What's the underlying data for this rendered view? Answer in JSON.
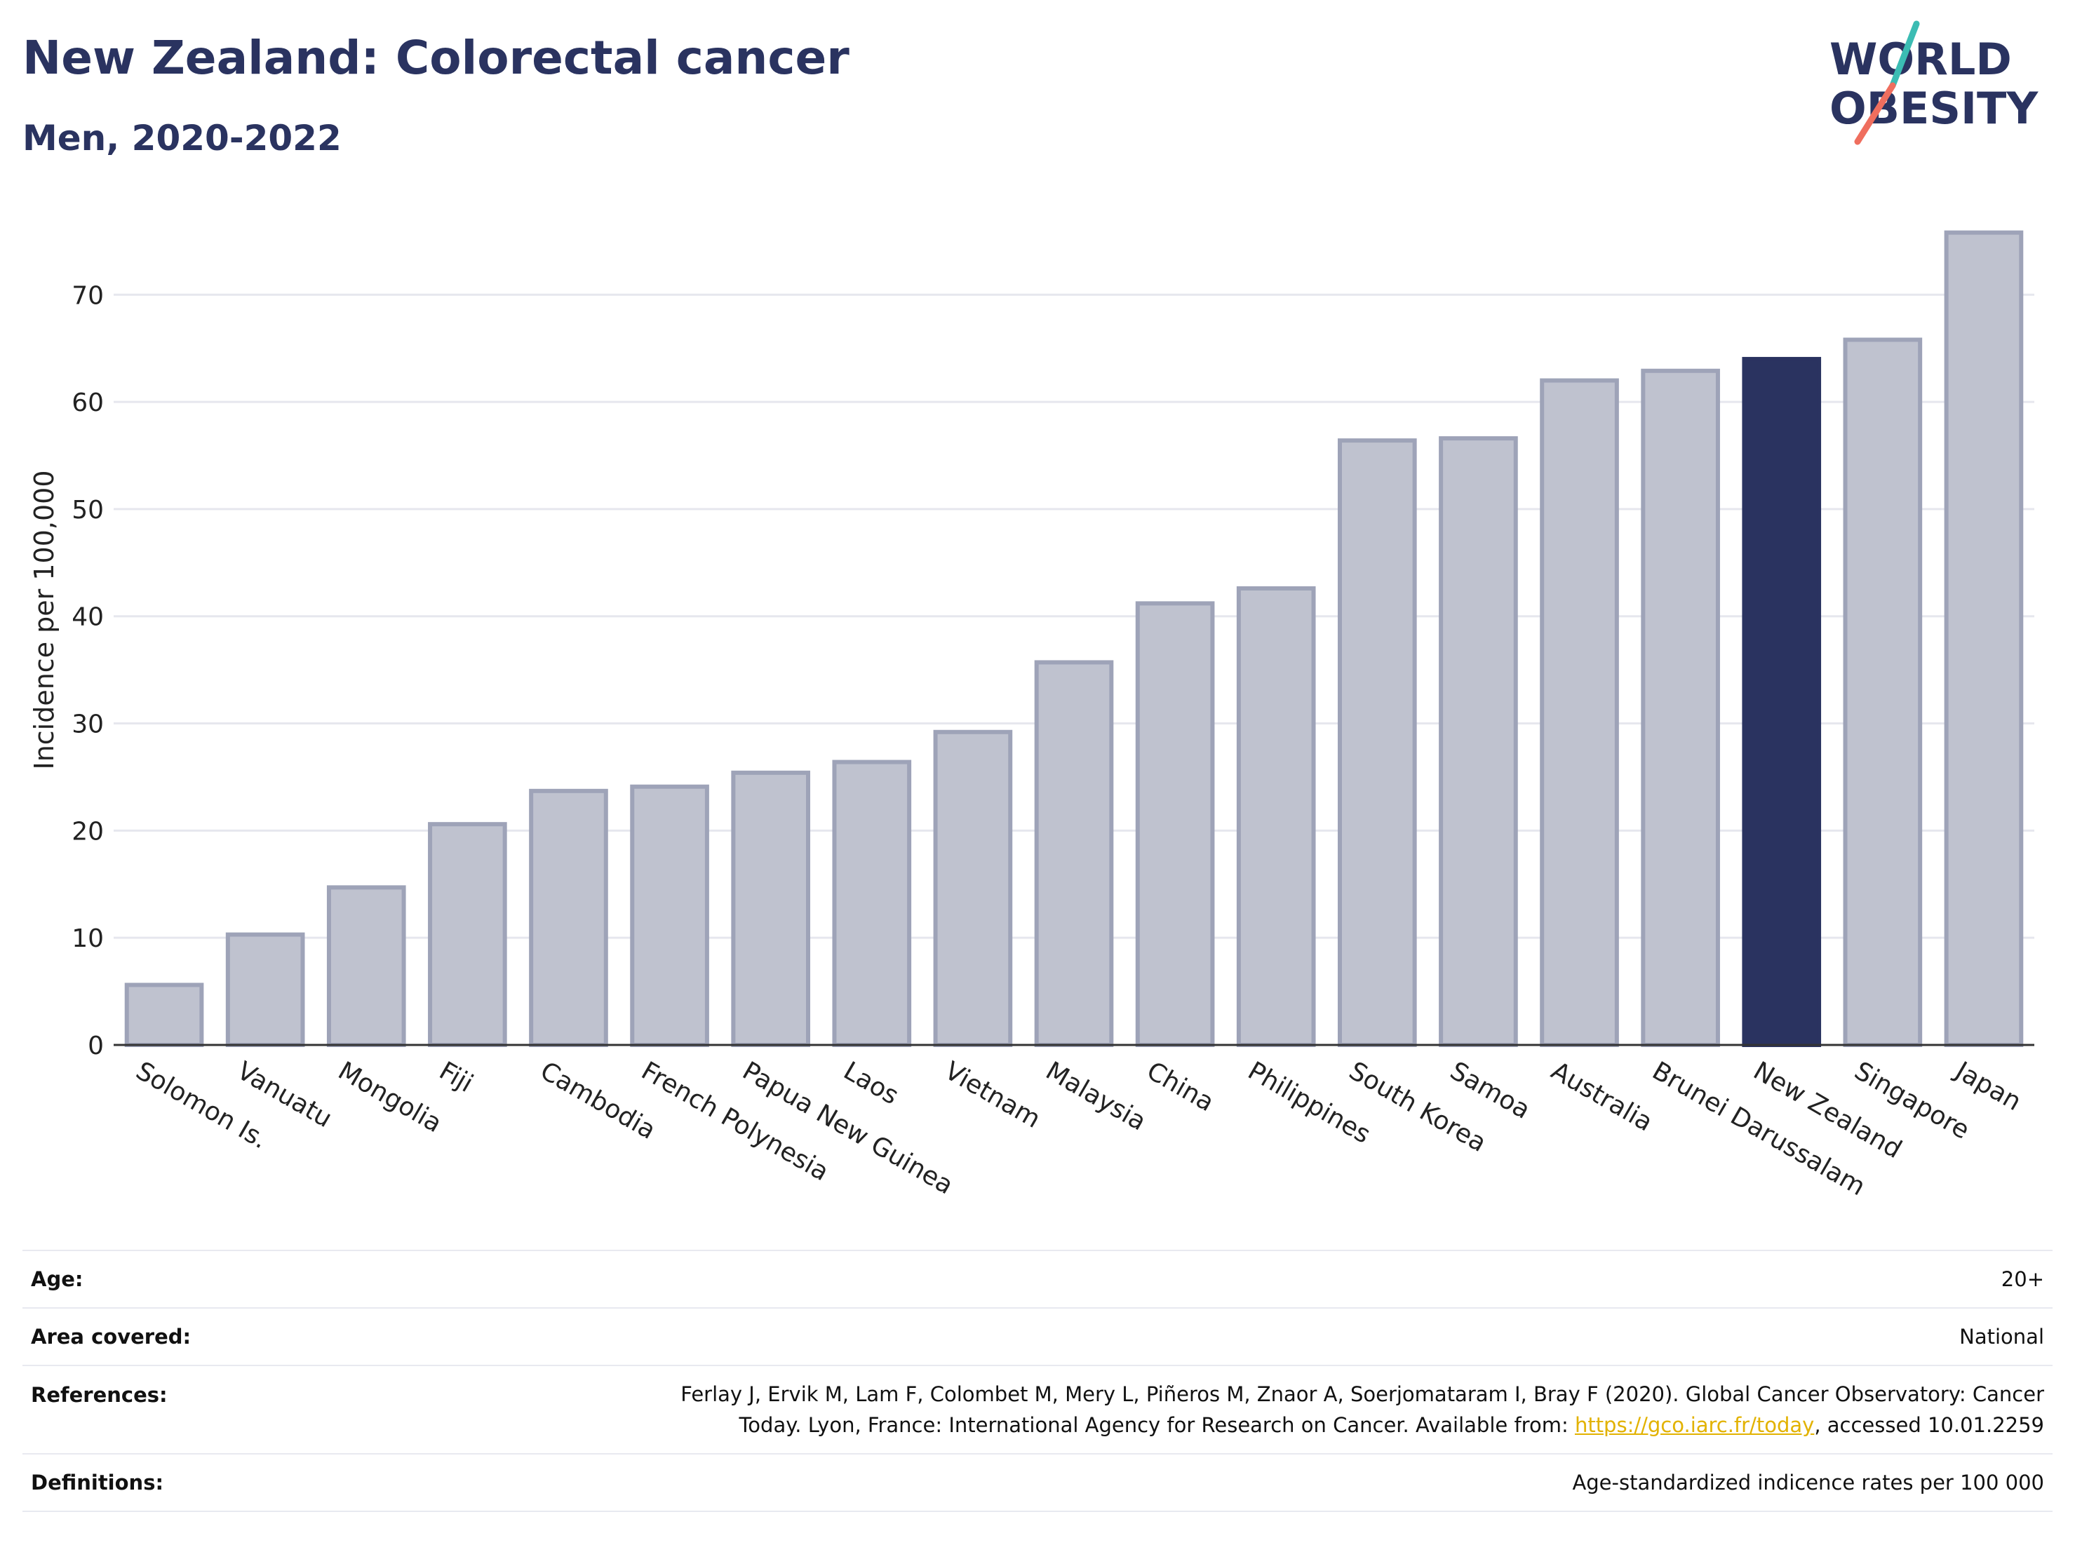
{
  "header": {
    "title": "New Zealand: Colorectal cancer",
    "subtitle": "Men, 2020-2022",
    "logo_line1": "WORLD",
    "logo_line2": "OBESITY"
  },
  "chart_data": {
    "type": "bar",
    "ylabel": "Incidence per 100,000",
    "xlabel": "",
    "ylim": [
      0,
      78
    ],
    "yticks": [
      0,
      10,
      20,
      30,
      40,
      50,
      60,
      70
    ],
    "grid": true,
    "categories": [
      "Solomon Is.",
      "Vanuatu",
      "Mongolia",
      "Fiji",
      "Cambodia",
      "French Polynesia",
      "Papua New Guinea",
      "Laos",
      "Vietnam",
      "Malaysia",
      "China",
      "Philippines",
      "South Korea",
      "Samoa",
      "Australia",
      "Brunei Darussalam",
      "New Zealand",
      "Singapore",
      "Japan"
    ],
    "values": [
      5.6,
      10.3,
      14.7,
      20.6,
      23.7,
      24.1,
      25.4,
      26.4,
      29.2,
      35.7,
      41.2,
      42.6,
      56.4,
      56.6,
      62.0,
      62.9,
      64.0,
      65.8,
      75.8
    ],
    "highlight": "New Zealand",
    "colors": {
      "bar_fill": "#bfc2cf",
      "bar_stroke": "#9ea3b8",
      "highlight": "#2a3360",
      "grid": "#e6e7ee"
    }
  },
  "info": {
    "age_label": "Age:",
    "age_value": "20+",
    "area_label": "Area covered:",
    "area_value": "National",
    "ref_label": "References:",
    "ref_line1": "Ferlay J, Ervik M, Lam F, Colombet M, Mery L, Piñeros M, Znaor A, Soerjomataram I, Bray F (2020). Global Cancer Observatory: Cancer",
    "ref_line2_pre": "Today. Lyon, France: International Agency for Research on Cancer. Available from: ",
    "ref_link": "https://gco.iarc.fr/today",
    "ref_line2_post": ", accessed 10.01.2259",
    "def_label": "Definitions:",
    "def_value": "Age-standardized indicence rates per 100 000"
  }
}
